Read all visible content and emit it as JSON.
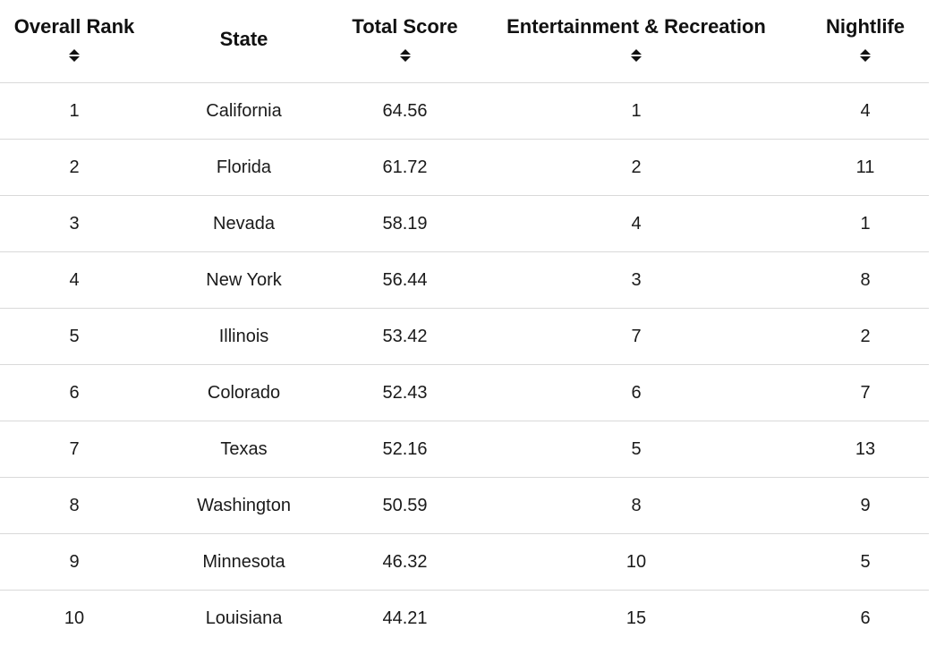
{
  "table": {
    "headers": [
      {
        "label": "Overall Rank",
        "sortable": true
      },
      {
        "label": "State",
        "sortable": false
      },
      {
        "label": "Total Score",
        "sortable": true
      },
      {
        "label": "Entertainment & Recreation",
        "sortable": true
      },
      {
        "label": "Nightlife",
        "sortable": true
      }
    ],
    "rows": [
      [
        "1",
        "California",
        "64.56",
        "1",
        "4"
      ],
      [
        "2",
        "Florida",
        "61.72",
        "2",
        "11"
      ],
      [
        "3",
        "Nevada",
        "58.19",
        "4",
        "1"
      ],
      [
        "4",
        "New York",
        "56.44",
        "3",
        "8"
      ],
      [
        "5",
        "Illinois",
        "53.42",
        "7",
        "2"
      ],
      [
        "6",
        "Colorado",
        "52.43",
        "6",
        "7"
      ],
      [
        "7",
        "Texas",
        "52.16",
        "5",
        "13"
      ],
      [
        "8",
        "Washington",
        "50.59",
        "8",
        "9"
      ],
      [
        "9",
        "Minnesota",
        "46.32",
        "10",
        "5"
      ],
      [
        "10",
        "Louisiana",
        "44.21",
        "15",
        "6"
      ]
    ]
  },
  "colors": {
    "text": "#111111",
    "divider": "#d9d9d9",
    "background": "#ffffff"
  },
  "icons": {
    "sort": "sort-icon"
  }
}
